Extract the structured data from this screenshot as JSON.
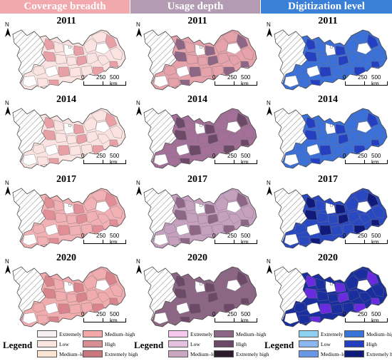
{
  "headers": [
    {
      "label": "Coverage breadth",
      "color": "#f2a9ae"
    },
    {
      "label": "Usage depth",
      "color": "#b39cb3"
    },
    {
      "label": "Digitization level",
      "color": "#3a7fd8"
    }
  ],
  "years": [
    "2011",
    "2014",
    "2017",
    "2020"
  ],
  "north_label": "N",
  "scale": {
    "t0": "0",
    "t1": "250",
    "t2": "500 km"
  },
  "legend_title": "Legend",
  "legends": [
    {
      "items": [
        {
          "label": "Extremely low",
          "color": "#f6f0f2"
        },
        {
          "label": "Low",
          "color": "#fbe5e0"
        },
        {
          "label": "Medium–low",
          "color": "#fde5d2"
        },
        {
          "label": "Medium–high",
          "color": "#f3a7a9"
        },
        {
          "label": "High",
          "color": "#d98e93"
        },
        {
          "label": "Extremely high",
          "color": "#c9767c"
        }
      ]
    },
    {
      "items": [
        {
          "label": "Extremely low",
          "color": "#f7c8ee"
        },
        {
          "label": "Low",
          "color": "#e6c0df"
        },
        {
          "label": "Medium–low",
          "color": "#c9a6c2"
        },
        {
          "label": "Medium–high",
          "color": "#8d6585"
        },
        {
          "label": "High",
          "color": "#6c4a67"
        },
        {
          "label": "Extremely high",
          "color": "#2a1c2a"
        }
      ]
    },
    {
      "items": [
        {
          "label": "Extremely low",
          "color": "#8ed0ef"
        },
        {
          "label": "Low",
          "color": "#8ab8ee"
        },
        {
          "label": "Medium–low",
          "color": "#6a98e6"
        },
        {
          "label": "Medium–high",
          "color": "#3a74d6"
        },
        {
          "label": "High",
          "color": "#2440c0"
        },
        {
          "label": "Extremely high",
          "color": "#101a7a"
        }
      ]
    }
  ],
  "map_fills": [
    [
      "#fbe3e2",
      "#e6a2ab",
      "#3a70d8"
    ],
    [
      "#fbe3e2",
      "#a4709a",
      "#3a70d8"
    ],
    [
      "#f2b1b4",
      "#c6a0bf",
      "#2a48c0"
    ],
    [
      "#f0acae",
      "#8d6585",
      "#1a2e9e"
    ]
  ],
  "map_accent": [
    [
      "#e8a0a6",
      "#8d6585",
      "#2440c0"
    ],
    [
      "#e8a0a6",
      "#6c4a67",
      "#2440c0"
    ],
    [
      "#e28e96",
      "#8d6585",
      "#101a7a"
    ],
    [
      "#d9838c",
      "#6c4a67",
      "#6a2ae0"
    ]
  ]
}
